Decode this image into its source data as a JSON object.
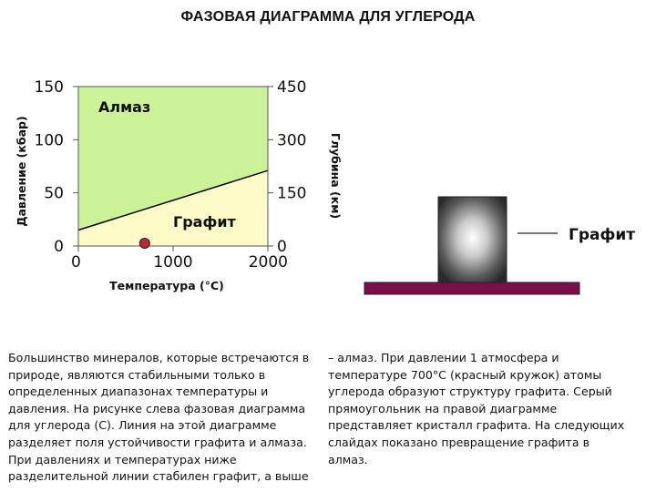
{
  "title": "ФАЗОВАЯ ДИАГРАММА ДЛЯ УГЛЕРОДА",
  "colors": {
    "diamond_region": "#ccf298",
    "graphite_region": "#fcfbc8",
    "boundary_line": "#000000",
    "red_dot": "#c0272d",
    "base_bar": "#7a0f4c"
  },
  "chart_data": {
    "type": "line",
    "title": "",
    "xlabel": "Температура (°С)",
    "ylabel": "Давление (кбар)",
    "ylabel_right": "Глубина (км)",
    "xlim": [
      0,
      2000
    ],
    "ylim": [
      0,
      150
    ],
    "x_ticks": [
      "0",
      "1000",
      "2000"
    ],
    "y_ticks": [
      "0",
      "50",
      "100",
      "150"
    ],
    "y_right_ticks": [
      "0",
      "150",
      "300",
      "450"
    ],
    "x_tick_values": [
      0,
      1000,
      2000
    ],
    "y_tick_values": [
      0,
      50,
      100,
      150
    ],
    "boundary": {
      "x": [
        0,
        2000
      ],
      "y": [
        15,
        71
      ]
    },
    "regions": [
      {
        "label": "Алмаз",
        "position": "upper-left"
      },
      {
        "label": "Графит",
        "position": "lower-right"
      }
    ],
    "point": {
      "x": 700,
      "y": 0.001
    },
    "grid": false
  },
  "crystal": {
    "label": "Графит"
  },
  "text_left": [
    "Большинство минералов, которые встречаются в",
    "природе, являются стабильными только в",
    "определенных диапазонах температуры и",
    "давления. На рисунке слева фазовая диаграмма",
    "для углерода (С). Линия на этой диаграмме",
    "разделяет поля устойчивости графита и алмаза.",
    "При давлениях и температурах ниже",
    "разделительной линии стабилен графит, а выше"
  ],
  "text_right": [
    "– алмаз. При давлении 1 атмосфера и",
    "температуре 700°С (красный кружок) атомы",
    "углерода образуют структуру графита. Серый",
    "прямоугольник на правой диаграмме",
    "представляет кристалл графита. На следующих",
    "слайдах показано превращение графита в",
    "алмаз."
  ]
}
